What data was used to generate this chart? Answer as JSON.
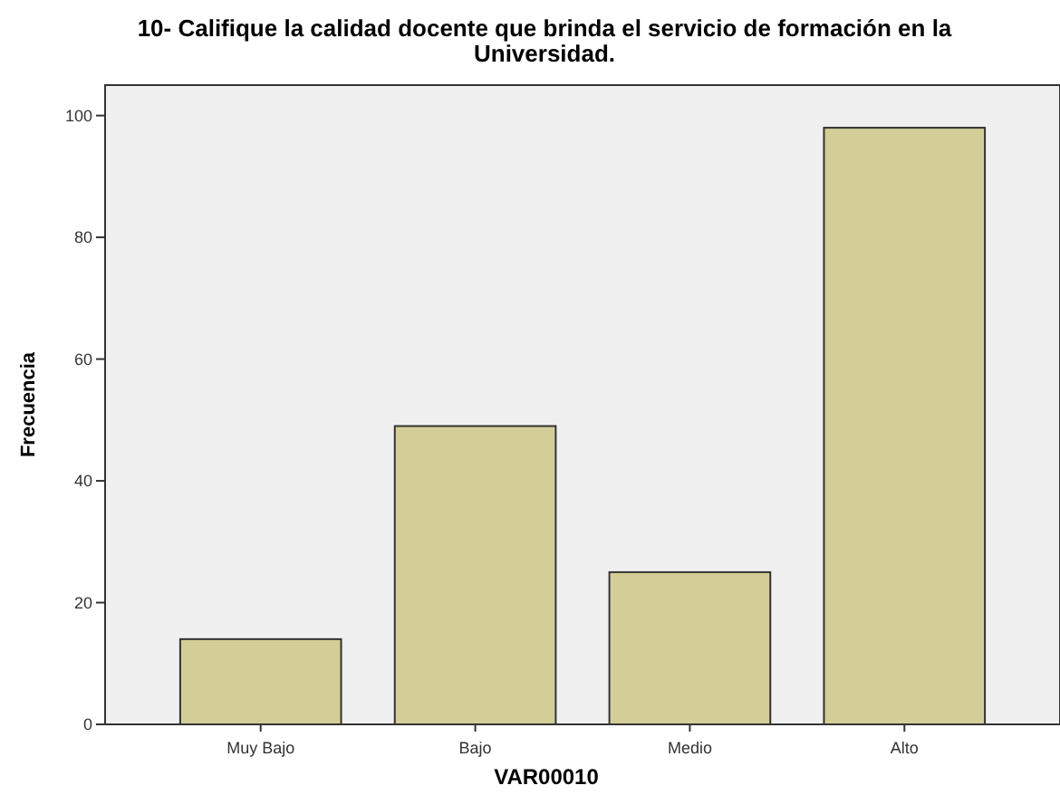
{
  "chart_data": {
    "type": "bar",
    "title": "10- Califique la calidad docente que brinda el servicio de formación en la Universidad.",
    "xlabel": "VAR00010",
    "ylabel": "Frecuencia",
    "categories": [
      "Muy Bajo",
      "Bajo",
      "Medio",
      "Alto"
    ],
    "values": [
      14,
      49,
      25,
      98
    ],
    "color": "#d3ce97",
    "ylim": [
      0,
      105
    ],
    "yticks": [
      0,
      20,
      40,
      60,
      80,
      100
    ],
    "grid": false
  }
}
